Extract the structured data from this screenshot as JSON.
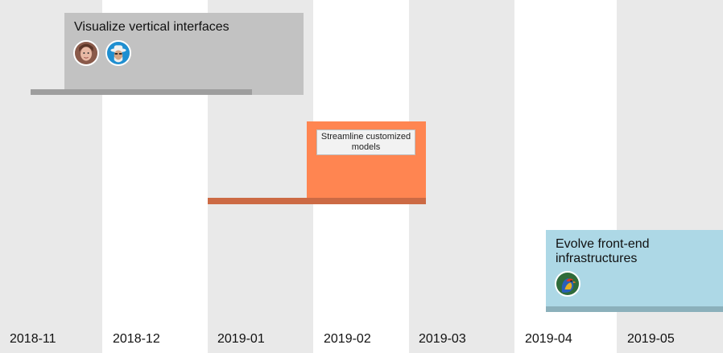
{
  "months": [
    "2018-11",
    "2018-12",
    "2019-01",
    "2019-02",
    "2019-03",
    "2019-04",
    "2019-05"
  ],
  "items": [
    {
      "title": "Visualize vertical interfaces",
      "color": "#c2c2c2",
      "bar_color": "#9e9e9e",
      "assignees": [
        "person-woman-avatar",
        "person-hat-avatar"
      ]
    },
    {
      "title": "Streamline customized models",
      "color": "#ff8551",
      "bar_color": "#cc6a44",
      "assignees": []
    },
    {
      "title": "Evolve front-end infrastructures",
      "color": "#add8e6",
      "bar_color": "#8bb0bb",
      "assignees": [
        "parrot-avatar"
      ]
    }
  ]
}
